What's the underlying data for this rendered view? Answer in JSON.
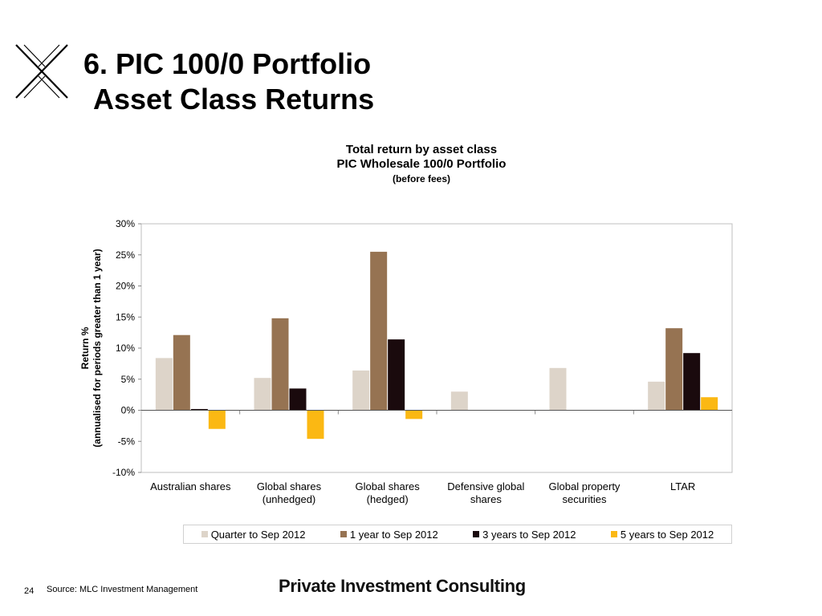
{
  "slide": {
    "title_line1": "6. PIC 100/0 Portfolio",
    "title_line2": "Asset Class Returns",
    "page_number": "24",
    "source": "Source: MLC Investment Management",
    "brand": "Private Investment Consulting",
    "logo_icon": "x-logo-icon"
  },
  "chart_data": {
    "type": "bar",
    "title": "Total return by asset class",
    "subtitle": "PIC Wholesale 100/0 Portfolio",
    "subtitle2": "(before fees)",
    "ylabel_line1": "Return %",
    "ylabel_line2": "(annualised  for periods greater than 1 year)",
    "xlabel": "",
    "ylim": [
      -10,
      30
    ],
    "yticks": [
      "30%",
      "25%",
      "20%",
      "15%",
      "10%",
      "5%",
      "0%",
      "-5%",
      "-10%"
    ],
    "yticks_values": [
      30,
      25,
      20,
      15,
      10,
      5,
      0,
      -5,
      -10
    ],
    "grid": false,
    "legend_position": "bottom",
    "categories": [
      [
        "Australian shares"
      ],
      [
        "Global shares",
        "(unhedged)"
      ],
      [
        "Global shares",
        "(hedged)"
      ],
      [
        "Defensive global",
        "shares"
      ],
      [
        "Global property",
        "securities"
      ],
      [
        "LTAR"
      ]
    ],
    "series": [
      {
        "name": "Quarter to  Sep 2012",
        "color": "#ddd4c9",
        "values": [
          8.4,
          5.2,
          6.4,
          3.0,
          6.8,
          4.6
        ]
      },
      {
        "name": "1 year to Sep 2012",
        "color": "#967352",
        "values": [
          12.1,
          14.8,
          25.5,
          null,
          null,
          13.2
        ]
      },
      {
        "name": "3 years to Sep 2012",
        "color": "#1a0a0d",
        "values": [
          0.2,
          3.5,
          11.4,
          null,
          null,
          9.2
        ]
      },
      {
        "name": "5 years to Sep 2012",
        "color": "#fbb813",
        "values": [
          -3.0,
          -4.6,
          -1.4,
          null,
          null,
          2.1
        ]
      }
    ]
  }
}
